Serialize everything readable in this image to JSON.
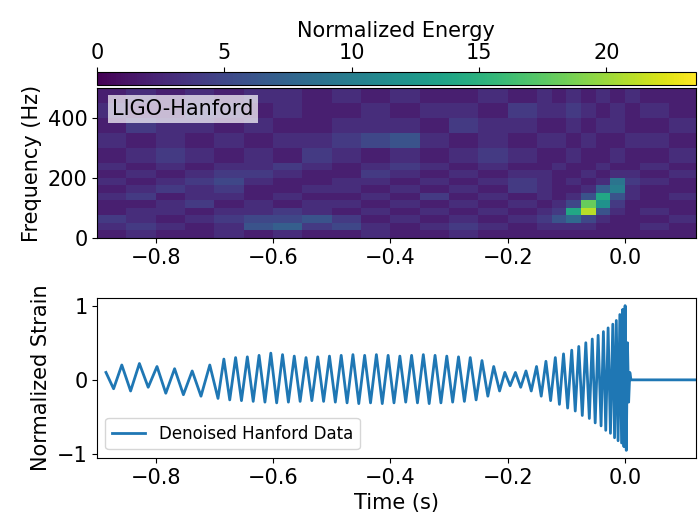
{
  "chart_data": [
    {
      "type": "heatmap",
      "annotation": "LIGO-Hanford",
      "y_label": "Frequency (Hz)",
      "colorbar_label": "Normalized Energy",
      "xlim": [
        -0.9,
        0.12
      ],
      "xticks": [
        {
          "value": -0.8,
          "label": "−0.8"
        },
        {
          "value": -0.6,
          "label": "−0.6"
        },
        {
          "value": -0.4,
          "label": "−0.4"
        },
        {
          "value": -0.2,
          "label": "−0.2"
        },
        {
          "value": 0.0,
          "label": "0.0"
        }
      ],
      "ylim": [
        0,
        500
      ],
      "yticks": [
        0,
        200,
        400
      ],
      "color_range": [
        0,
        23.5
      ],
      "color_ticks": [
        0,
        5,
        10,
        15,
        20
      ],
      "time_edges": [
        -0.9,
        -0.85,
        -0.8,
        -0.75,
        -0.7,
        -0.65,
        -0.6,
        -0.55,
        -0.5,
        -0.45,
        -0.4,
        -0.35,
        -0.3,
        -0.25,
        -0.2,
        -0.15,
        -0.125,
        -0.1,
        -0.075,
        -0.05,
        -0.025,
        0.0,
        0.025,
        0.075,
        0.125
      ],
      "frequency_edges": [
        0,
        25,
        50,
        75,
        100,
        125,
        150,
        175,
        200,
        225,
        250,
        300,
        350,
        400,
        450,
        500
      ],
      "cells": [
        [
          2,
          3,
          2,
          2,
          3,
          2,
          3,
          2,
          2,
          3,
          2,
          2,
          3,
          2,
          2,
          2,
          2,
          2,
          2,
          2,
          2,
          2,
          2,
          2
        ],
        [
          3,
          4,
          3,
          2,
          3,
          6,
          7,
          4,
          5,
          3,
          2,
          3,
          4,
          3,
          2,
          3,
          3,
          3,
          3,
          2,
          2,
          2,
          3,
          2
        ],
        [
          4,
          3,
          2,
          3,
          4,
          5,
          5,
          6,
          4,
          2,
          3,
          2,
          3,
          2,
          3,
          4,
          6,
          8,
          5,
          3,
          2,
          2,
          2,
          3
        ],
        [
          2,
          3,
          3,
          2,
          3,
          3,
          4,
          3,
          2,
          3,
          2,
          3,
          2,
          3,
          2,
          3,
          4,
          14,
          21,
          6,
          3,
          2,
          3,
          2
        ],
        [
          2,
          2,
          3,
          4,
          2,
          3,
          2,
          3,
          3,
          2,
          3,
          2,
          3,
          2,
          3,
          2,
          3,
          5,
          18,
          12,
          4,
          2,
          2,
          2
        ],
        [
          3,
          4,
          2,
          3,
          3,
          2,
          3,
          2,
          2,
          3,
          2,
          4,
          2,
          3,
          2,
          3,
          2,
          3,
          6,
          14,
          6,
          3,
          2,
          3
        ],
        [
          2,
          3,
          4,
          3,
          4,
          2,
          2,
          3,
          3,
          2,
          3,
          2,
          3,
          2,
          4,
          3,
          2,
          2,
          3,
          7,
          10,
          3,
          2,
          2
        ],
        [
          3,
          2,
          3,
          4,
          5,
          3,
          2,
          2,
          3,
          3,
          2,
          3,
          2,
          3,
          4,
          3,
          2,
          3,
          2,
          3,
          9,
          4,
          3,
          2
        ],
        [
          2,
          3,
          2,
          3,
          4,
          4,
          3,
          2,
          2,
          4,
          3,
          2,
          3,
          2,
          3,
          3,
          2,
          2,
          3,
          2,
          3,
          3,
          2,
          3
        ],
        [
          3,
          2,
          3,
          2,
          3,
          3,
          4,
          3,
          2,
          3,
          4,
          3,
          2,
          3,
          2,
          2,
          3,
          2,
          2,
          3,
          2,
          2,
          3,
          2
        ],
        [
          2,
          3,
          4,
          3,
          2,
          3,
          2,
          4,
          3,
          2,
          3,
          2,
          3,
          4,
          3,
          2,
          2,
          3,
          2,
          2,
          3,
          2,
          2,
          3
        ],
        [
          3,
          2,
          3,
          2,
          3,
          2,
          3,
          3,
          4,
          5,
          6,
          3,
          2,
          3,
          2,
          3,
          3,
          2,
          3,
          2,
          2,
          3,
          3,
          2
        ],
        [
          2,
          4,
          3,
          3,
          2,
          3,
          2,
          2,
          3,
          3,
          3,
          2,
          4,
          3,
          3,
          2,
          2,
          3,
          2,
          3,
          3,
          2,
          2,
          3
        ],
        [
          3,
          2,
          2,
          4,
          3,
          2,
          3,
          2,
          2,
          3,
          2,
          3,
          3,
          2,
          4,
          3,
          3,
          4,
          3,
          2,
          3,
          2,
          3,
          2
        ],
        [
          2,
          3,
          2,
          3,
          2,
          3,
          3,
          2,
          3,
          2,
          3,
          2,
          2,
          3,
          2,
          3,
          2,
          3,
          2,
          3,
          2,
          3,
          2,
          2
        ]
      ]
    },
    {
      "type": "line",
      "x_label": "Time (s)",
      "y_label": "Normalized Strain",
      "xlim": [
        -0.9,
        0.12
      ],
      "xticks": [
        {
          "value": -0.8,
          "label": "−0.8"
        },
        {
          "value": -0.6,
          "label": "−0.6"
        },
        {
          "value": -0.4,
          "label": "−0.4"
        },
        {
          "value": -0.2,
          "label": "−0.2"
        },
        {
          "value": 0.0,
          "label": "0.0"
        }
      ],
      "ylim": [
        -1.05,
        1.1
      ],
      "yticks": [
        {
          "value": -1,
          "label": "−1"
        },
        0,
        1
      ],
      "legend": "lower left",
      "series": [
        {
          "name": "Denoised Hanford Data",
          "color": "#1f77b4",
          "x": [
            -0.885,
            -0.872,
            -0.858,
            -0.843,
            -0.828,
            -0.813,
            -0.798,
            -0.783,
            -0.768,
            -0.753,
            -0.738,
            -0.723,
            -0.708,
            -0.694,
            -0.684,
            -0.674,
            -0.664,
            -0.654,
            -0.644,
            -0.634,
            -0.624,
            -0.614,
            -0.604,
            -0.594,
            -0.584,
            -0.574,
            -0.564,
            -0.554,
            -0.544,
            -0.534,
            -0.524,
            -0.514,
            -0.504,
            -0.494,
            -0.484,
            -0.474,
            -0.464,
            -0.454,
            -0.444,
            -0.434,
            -0.424,
            -0.414,
            -0.404,
            -0.394,
            -0.384,
            -0.374,
            -0.364,
            -0.354,
            -0.344,
            -0.334,
            -0.324,
            -0.314,
            -0.304,
            -0.294,
            -0.284,
            -0.274,
            -0.264,
            -0.254,
            -0.244,
            -0.234,
            -0.224,
            -0.214,
            -0.205,
            -0.196,
            -0.187,
            -0.178,
            -0.169,
            -0.16,
            -0.151,
            -0.143,
            -0.135,
            -0.127,
            -0.119,
            -0.112,
            -0.105,
            -0.098,
            -0.091,
            -0.085,
            -0.079,
            -0.073,
            -0.067,
            -0.061,
            -0.056,
            -0.051,
            -0.046,
            -0.041,
            -0.037,
            -0.033,
            -0.029,
            -0.025,
            -0.021,
            -0.018,
            -0.015,
            -0.012,
            -0.009,
            -0.006,
            -0.004,
            -0.002,
            0.0,
            0.002,
            0.004,
            0.006,
            0.008,
            0.01,
            0.12
          ],
          "values": [
            0.1,
            -0.12,
            0.2,
            -0.15,
            0.22,
            -0.1,
            0.18,
            -0.18,
            0.15,
            -0.2,
            0.12,
            -0.22,
            0.2,
            -0.25,
            0.28,
            -0.27,
            0.3,
            -0.28,
            0.31,
            -0.29,
            0.33,
            -0.3,
            0.36,
            -0.31,
            0.34,
            -0.3,
            0.32,
            -0.29,
            0.3,
            -0.28,
            0.31,
            -0.29,
            0.32,
            -0.3,
            0.33,
            -0.31,
            0.34,
            -0.32,
            0.33,
            -0.31,
            0.34,
            -0.32,
            0.33,
            -0.31,
            0.32,
            -0.3,
            0.33,
            -0.31,
            0.34,
            -0.32,
            0.33,
            -0.31,
            0.32,
            -0.3,
            0.31,
            -0.29,
            0.3,
            -0.27,
            0.26,
            -0.22,
            0.18,
            -0.15,
            0.1,
            -0.08,
            0.1,
            -0.1,
            0.12,
            -0.15,
            0.18,
            -0.22,
            0.25,
            -0.28,
            0.3,
            -0.33,
            0.35,
            -0.38,
            0.4,
            -0.42,
            0.45,
            -0.48,
            0.5,
            -0.52,
            0.55,
            -0.58,
            0.6,
            -0.62,
            0.65,
            -0.68,
            0.7,
            -0.72,
            0.75,
            -0.78,
            0.8,
            -0.82,
            0.88,
            -0.85,
            0.95,
            -0.9,
            1.0,
            -0.95,
            0.5,
            -0.3,
            0.1,
            0.0,
            0.0
          ]
        }
      ]
    }
  ]
}
